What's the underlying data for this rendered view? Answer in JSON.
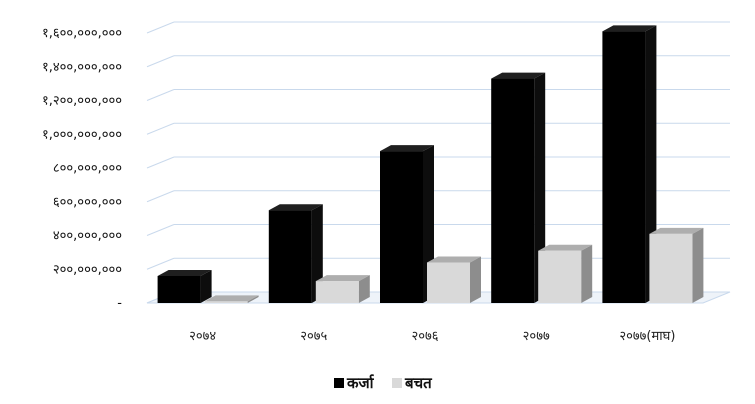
{
  "chart_data": {
    "type": "bar",
    "style": "3d-clustered-column",
    "categories": [
      "२०७४",
      "२०७५",
      "२०७६",
      "२०७७",
      "२०७७(माघ)"
    ],
    "series": [
      {
        "name": "कर्जा",
        "color": "#000000",
        "values": [
          160000000,
          550000000,
          900000000,
          1330000000,
          1610000000
        ]
      },
      {
        "name": "बचत",
        "color": "#d9d9d9",
        "values": [
          10000000,
          130000000,
          240000000,
          310000000,
          410000000
        ]
      }
    ],
    "ylim": [
      0,
      1600000000
    ],
    "yticks": [
      0,
      200000000,
      400000000,
      600000000,
      800000000,
      1000000000,
      1200000000,
      1400000000,
      1600000000
    ],
    "ytick_labels": [
      "-",
      "२००,०००,०००",
      "४००,०००,०००",
      "६००,०००,०००",
      "८००,०००,०००",
      "१,०००,०००,०००",
      "१,२००,०००,०००",
      "१,४००,०००,०००",
      "१,६००,०००,०००"
    ],
    "title": "",
    "xlabel": "",
    "ylabel": "",
    "grid": true,
    "legend_position": "bottom"
  }
}
